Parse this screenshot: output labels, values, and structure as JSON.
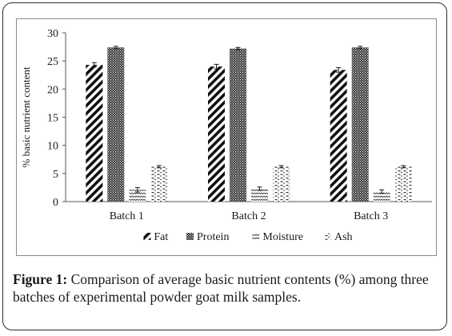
{
  "chart_data": {
    "type": "bar",
    "ylabel": "% basic nutrient content",
    "xlabel": "",
    "ylim": [
      0,
      30
    ],
    "yticks": [
      0,
      5,
      10,
      15,
      20,
      25,
      30
    ],
    "grid": false,
    "legend_position": "bottom",
    "categories": [
      "Batch 1",
      "Batch 2",
      "Batch 3"
    ],
    "series": [
      {
        "name": "Fat",
        "values": [
          24.3,
          24.0,
          23.4
        ],
        "errors": [
          0.4,
          0.4,
          0.4
        ],
        "pattern": "diagonal-stripes"
      },
      {
        "name": "Protein",
        "values": [
          27.4,
          27.2,
          27.4
        ],
        "errors": [
          0.2,
          0.2,
          0.2
        ],
        "pattern": "checker"
      },
      {
        "name": "Moisture",
        "values": [
          2.1,
          2.3,
          1.8
        ],
        "errors": [
          0.4,
          0.3,
          0.3
        ],
        "pattern": "wave"
      },
      {
        "name": "Ash",
        "values": [
          6.2,
          6.2,
          6.2
        ],
        "errors": [
          0.2,
          0.2,
          0.2
        ],
        "pattern": "dashes"
      }
    ],
    "colors": {
      "ink": "#1a1a1a",
      "frame": "#2b2b2b"
    }
  },
  "caption": {
    "lead": "Figure 1:",
    "text": " Comparison of average basic nutrient contents (%) among three batches of experimental powder goat milk samples."
  }
}
